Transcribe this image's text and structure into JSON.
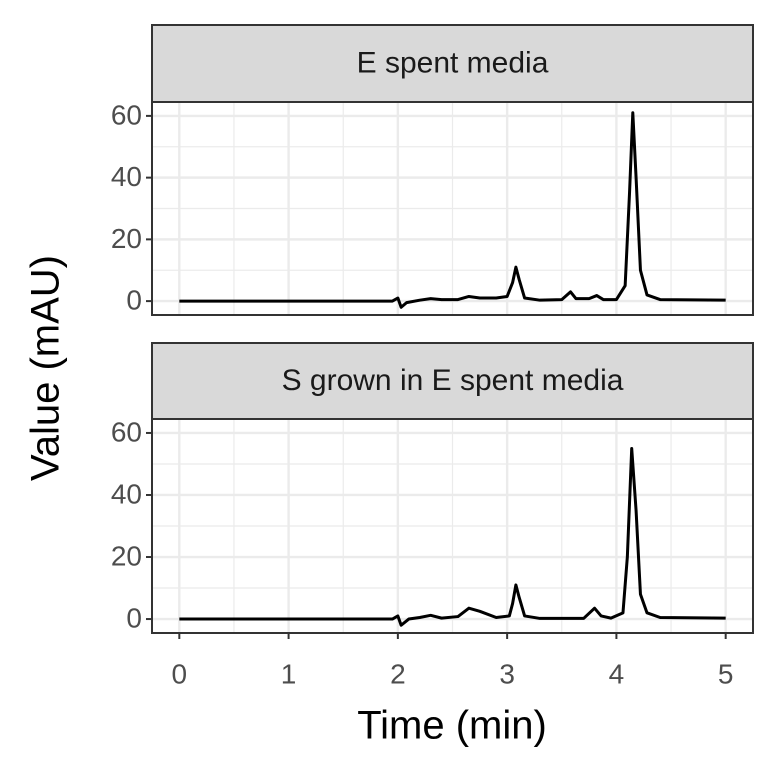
{
  "chart_data": {
    "type": "line",
    "xlabel": "Time (min)",
    "ylabel": "Value (mAU)",
    "xlim": [
      -0.25,
      5.25
    ],
    "xticks": [
      0,
      1,
      2,
      3,
      4,
      5
    ],
    "ylim": [
      -4.5,
      64.5
    ],
    "yticks": [
      0,
      20,
      40,
      60
    ],
    "grid": true,
    "color": "#000000",
    "panels": [
      {
        "title": "E spent media",
        "x": [
          0,
          1.95,
          2.0,
          2.03,
          2.08,
          2.2,
          2.3,
          2.4,
          2.55,
          2.65,
          2.75,
          2.9,
          3.0,
          3.05,
          3.08,
          3.11,
          3.16,
          3.3,
          3.5,
          3.58,
          3.63,
          3.75,
          3.82,
          3.88,
          4.0,
          4.08,
          4.12,
          4.15,
          4.18,
          4.22,
          4.28,
          4.4,
          5.0
        ],
        "values": [
          0,
          0,
          1,
          -2,
          -0.5,
          0.3,
          0.8,
          0.5,
          0.5,
          1.5,
          1,
          1,
          1.5,
          6,
          11,
          7,
          1,
          0.3,
          0.5,
          3,
          0.8,
          0.8,
          1.8,
          0.5,
          0.5,
          5,
          35,
          61,
          40,
          10,
          2,
          0.5,
          0.3
        ]
      },
      {
        "title": "S grown in E spent media",
        "x": [
          0,
          1.95,
          2.0,
          2.03,
          2.1,
          2.2,
          2.3,
          2.4,
          2.55,
          2.65,
          2.75,
          2.9,
          3.02,
          3.05,
          3.08,
          3.11,
          3.16,
          3.3,
          3.7,
          3.8,
          3.86,
          3.95,
          4.06,
          4.1,
          4.14,
          4.18,
          4.22,
          4.28,
          4.4,
          5.0
        ],
        "values": [
          0,
          0,
          1,
          -2,
          0,
          0.5,
          1.2,
          0.3,
          0.8,
          3.5,
          2.5,
          0.5,
          1,
          5,
          11,
          7,
          1,
          0.2,
          0.2,
          3.5,
          1,
          0.3,
          2,
          20,
          55,
          35,
          8,
          2,
          0.5,
          0.3
        ]
      }
    ]
  }
}
